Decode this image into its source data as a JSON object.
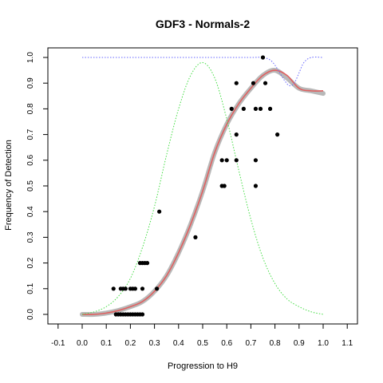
{
  "chart_data": {
    "type": "scatter",
    "title": "GDF3 - Normals-2",
    "xlabel": "Progression to H9",
    "ylabel": "Frequency of Detection",
    "xlim": [
      -0.1,
      1.1
    ],
    "ylim": [
      0.0,
      1.0
    ],
    "xticks": [
      "-0.1",
      "0.0",
      "0.1",
      "0.2",
      "0.3",
      "0.4",
      "0.5",
      "0.6",
      "0.7",
      "0.8",
      "0.9",
      "1.0",
      "1.1"
    ],
    "yticks": [
      "0.0",
      "0.1",
      "0.2",
      "0.3",
      "0.4",
      "0.5",
      "0.6",
      "0.7",
      "0.8",
      "0.9",
      "1.0"
    ],
    "grid": false,
    "colors": {
      "points": "#000000",
      "gray_band": "#b0b0b0",
      "fit_line": "#e06060",
      "green_density": "#44dd44",
      "blue_dotted": "#6666ff"
    },
    "series": [
      {
        "style": "points",
        "points": [
          [
            0.13,
            0.1
          ],
          [
            0.16,
            0.1
          ],
          [
            0.17,
            0.1
          ],
          [
            0.18,
            0.1
          ],
          [
            0.2,
            0.1
          ],
          [
            0.21,
            0.1
          ],
          [
            0.22,
            0.1
          ],
          [
            0.25,
            0.1
          ],
          [
            0.31,
            0.1
          ],
          [
            0.14,
            0.0
          ],
          [
            0.15,
            0.0
          ],
          [
            0.16,
            0.0
          ],
          [
            0.17,
            0.0
          ],
          [
            0.18,
            0.0
          ],
          [
            0.19,
            0.0
          ],
          [
            0.2,
            0.0
          ],
          [
            0.21,
            0.0
          ],
          [
            0.22,
            0.0
          ],
          [
            0.23,
            0.0
          ],
          [
            0.24,
            0.0
          ],
          [
            0.25,
            0.0
          ],
          [
            0.24,
            0.2
          ],
          [
            0.25,
            0.2
          ],
          [
            0.26,
            0.2
          ],
          [
            0.27,
            0.2
          ],
          [
            0.32,
            0.4
          ],
          [
            0.47,
            0.3
          ],
          [
            0.58,
            0.6
          ],
          [
            0.6,
            0.6
          ],
          [
            0.64,
            0.6
          ],
          [
            0.72,
            0.6
          ],
          [
            0.58,
            0.5
          ],
          [
            0.59,
            0.5
          ],
          [
            0.72,
            0.5
          ],
          [
            0.64,
            0.7
          ],
          [
            0.81,
            0.7
          ],
          [
            0.62,
            0.8
          ],
          [
            0.67,
            0.8
          ],
          [
            0.72,
            0.8
          ],
          [
            0.74,
            0.8
          ],
          [
            0.78,
            0.8
          ],
          [
            0.64,
            0.9
          ],
          [
            0.71,
            0.9
          ],
          [
            0.76,
            0.9
          ],
          [
            0.75,
            1.0
          ]
        ]
      },
      {
        "style": "gray_band",
        "x": [
          0.0,
          0.05,
          0.1,
          0.15,
          0.2,
          0.25,
          0.3,
          0.35,
          0.4,
          0.45,
          0.5,
          0.55,
          0.6,
          0.65,
          0.7,
          0.75,
          0.8,
          0.85,
          0.9,
          0.95,
          1.0
        ],
        "y": [
          0.0,
          0.0,
          0.005,
          0.015,
          0.03,
          0.05,
          0.09,
          0.15,
          0.24,
          0.35,
          0.48,
          0.63,
          0.74,
          0.82,
          0.88,
          0.93,
          0.95,
          0.92,
          0.88,
          0.87,
          0.86
        ]
      },
      {
        "style": "fit_line",
        "x": [
          0.0,
          0.05,
          0.1,
          0.15,
          0.2,
          0.25,
          0.3,
          0.35,
          0.4,
          0.45,
          0.5,
          0.55,
          0.6,
          0.65,
          0.7,
          0.75,
          0.8,
          0.85,
          0.9,
          0.95,
          1.0
        ],
        "y": [
          0.0,
          0.0,
          0.005,
          0.015,
          0.03,
          0.05,
          0.09,
          0.15,
          0.24,
          0.35,
          0.48,
          0.63,
          0.74,
          0.82,
          0.88,
          0.93,
          0.95,
          0.93,
          0.88,
          0.87,
          0.87
        ]
      },
      {
        "style": "green_density",
        "x": [
          0.0,
          0.05,
          0.1,
          0.15,
          0.2,
          0.25,
          0.3,
          0.35,
          0.4,
          0.45,
          0.5,
          0.55,
          0.6,
          0.65,
          0.7,
          0.75,
          0.8,
          0.85,
          0.9,
          0.95,
          1.0
        ],
        "y": [
          0.0,
          0.01,
          0.03,
          0.07,
          0.14,
          0.26,
          0.42,
          0.62,
          0.8,
          0.93,
          0.98,
          0.92,
          0.76,
          0.56,
          0.37,
          0.22,
          0.12,
          0.06,
          0.03,
          0.01,
          0.0
        ]
      },
      {
        "style": "blue_dotted",
        "x": [
          0.0,
          0.1,
          0.2,
          0.3,
          0.4,
          0.5,
          0.6,
          0.7,
          0.75,
          0.78,
          0.8,
          0.82,
          0.84,
          0.86,
          0.88,
          0.9,
          0.92,
          0.95,
          1.0
        ],
        "y": [
          1.0,
          1.0,
          1.0,
          1.0,
          1.0,
          1.0,
          1.0,
          1.0,
          1.0,
          0.99,
          0.97,
          0.94,
          0.91,
          0.89,
          0.9,
          0.94,
          0.98,
          1.0,
          1.0
        ]
      }
    ]
  }
}
